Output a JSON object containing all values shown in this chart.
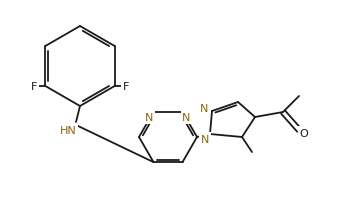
{
  "bg_color": "#ffffff",
  "bond_color": "#1a1a1a",
  "atom_colors": {
    "N": "#8B6508",
    "F": "#1a1a1a",
    "O": "#1a1a1a",
    "HN": "#8B6508"
  },
  "figsize": [
    3.44,
    2.07
  ],
  "dpi": 100,
  "font_size": 8.0
}
